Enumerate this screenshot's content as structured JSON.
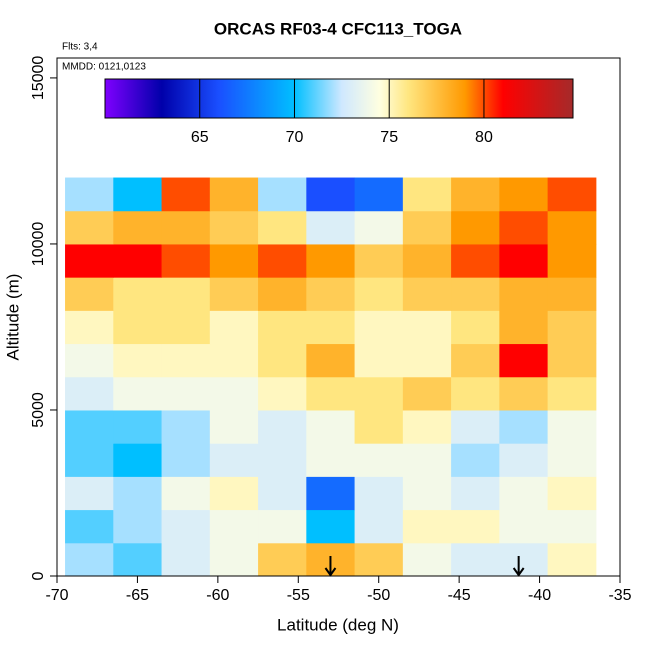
{
  "chart_data": {
    "type": "heatmap",
    "title": "ORCAS RF03-4 CFC113_TOGA",
    "annotations": [
      "Flts: 3,4",
      "MMDD: 0121,0123"
    ],
    "x_label": "Latitude (deg N)",
    "y_label": "Altitude (m)",
    "xlim": [
      -70,
      -35
    ],
    "xticks": [
      -70,
      -65,
      -60,
      -55,
      -50,
      -45,
      -40,
      -35
    ],
    "ylim": [
      0,
      15600
    ],
    "yticks": [
      0,
      5000,
      10000,
      15000
    ],
    "x": [
      -68,
      -65,
      -62,
      -59,
      -56,
      -53,
      -50,
      -47,
      -44,
      -41,
      -38
    ],
    "y": [
      500,
      1500,
      2500,
      3500,
      4500,
      5500,
      6500,
      7500,
      8500,
      9500,
      10500,
      11500
    ],
    "z": [
      [
        72,
        71,
        73,
        74,
        77,
        78,
        77,
        74,
        73,
        73,
        75
      ],
      [
        71,
        72,
        73,
        74,
        74,
        70,
        73,
        75,
        75,
        74,
        74
      ],
      [
        73,
        72,
        74,
        75,
        73,
        67,
        73,
        74,
        73,
        74,
        75
      ],
      [
        71,
        70,
        72,
        73,
        73,
        74,
        74,
        74,
        72,
        73,
        74
      ],
      [
        71,
        71,
        72,
        74,
        73,
        74,
        76,
        75,
        73,
        72,
        74
      ],
      [
        73,
        74,
        74,
        74,
        75,
        76,
        76,
        77,
        76,
        77,
        76
      ],
      [
        74,
        75,
        75,
        75,
        76,
        78,
        75,
        75,
        77,
        81,
        77
      ],
      [
        75,
        76,
        76,
        75,
        76,
        76,
        75,
        75,
        76,
        78,
        77
      ],
      [
        77,
        76,
        76,
        77,
        78,
        77,
        76,
        77,
        77,
        78,
        78
      ],
      [
        81,
        81,
        80,
        79,
        80,
        79,
        77,
        78,
        80,
        81,
        79
      ],
      [
        77,
        78,
        78,
        77,
        76,
        73,
        74,
        77,
        79,
        80,
        79
      ],
      [
        72,
        70,
        80,
        78,
        72,
        66,
        67,
        76,
        78,
        79,
        80
      ]
    ],
    "clim": [
      60,
      84.7
    ],
    "cticks": [
      65,
      70,
      75,
      80
    ],
    "colorscale": [
      [
        60,
        "#7f00ff"
      ],
      [
        63,
        "#0000aa"
      ],
      [
        66,
        "#1a4fff"
      ],
      [
        70,
        "#00bfff"
      ],
      [
        72.5,
        "#cfe8ff"
      ],
      [
        74.5,
        "#ffffe0"
      ],
      [
        76,
        "#ffe680"
      ],
      [
        79,
        "#ff9900"
      ],
      [
        81,
        "#ff0000"
      ],
      [
        84.7,
        "#a52a2a"
      ]
    ],
    "arrows": [
      -53,
      -41.3
    ]
  }
}
